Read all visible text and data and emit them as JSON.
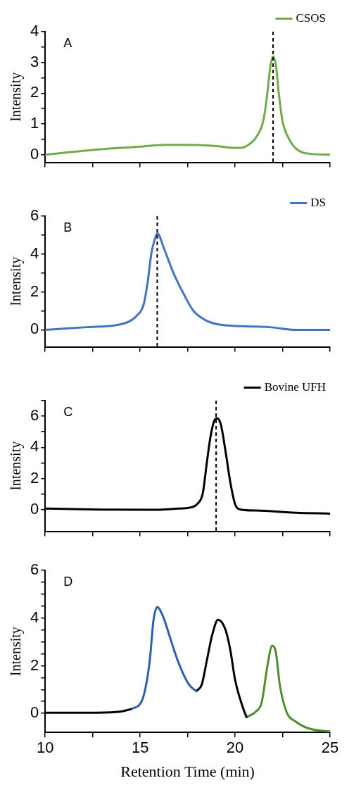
{
  "chart_data": [
    {
      "type": "line",
      "ylabel": "Intensity",
      "annotations": [
        "A"
      ],
      "legend": "top right",
      "marker": "none",
      "grid": false,
      "tick_labels": "y",
      "xlim": [
        10,
        25
      ],
      "xticks": [
        10,
        {
          "value": 12.5,
          "label": null
        },
        15,
        {
          "value": 17.5,
          "label": null
        },
        20,
        {
          "value": 22.5,
          "label": null
        },
        25
      ],
      "ylim": [
        -0.25,
        4
      ],
      "yticks": [
        0,
        {
          "value": 0.5,
          "label": null
        },
        1,
        {
          "value": 1.5,
          "label": null
        },
        2,
        {
          "value": 2.5,
          "label": null
        },
        3,
        {
          "value": 3.5,
          "label": null
        },
        4
      ],
      "ref_lines": [
        {
          "axis": "x",
          "value": 22,
          "color": "#000000",
          "line_style": "dashed"
        }
      ],
      "series": [
        {
          "name": "CSOS",
          "color": "#70ad47",
          "x": [
            10,
            12.4,
            15,
            16.3,
            17.4,
            18.8,
            19.75,
            20.3,
            20.7,
            21.1,
            21.5,
            21.7,
            21.85,
            22,
            22.15,
            22.3,
            22.5,
            22.8,
            23.2,
            23.9,
            25
          ],
          "values": [
            0,
            0.15,
            0.26,
            0.32,
            0.32,
            0.29,
            0.23,
            0.22,
            0.32,
            0.56,
            1.14,
            2.0,
            2.84,
            3.19,
            2.9,
            2.0,
            1.08,
            0.56,
            0.2,
            0.03,
            0
          ]
        }
      ]
    },
    {
      "type": "line",
      "ylabel": "Intensity",
      "annotations": [
        "B"
      ],
      "legend": "top right",
      "marker": "none",
      "grid": false,
      "tick_labels": "y",
      "xlim": [
        10,
        25
      ],
      "xticks": [
        10,
        {
          "value": 12.5,
          "label": null
        },
        15,
        {
          "value": 17.5,
          "label": null
        },
        20,
        {
          "value": 22.5,
          "label": null
        },
        25
      ],
      "ylim": [
        -0.9,
        6
      ],
      "yticks": [
        0,
        {
          "value": 1,
          "label": null
        },
        2,
        {
          "value": 3,
          "label": null
        },
        4,
        {
          "value": 5,
          "label": null
        },
        6
      ],
      "ref_lines": [
        {
          "axis": "x",
          "value": 15.9,
          "color": "#000000",
          "line_style": "dashed"
        }
      ],
      "series": [
        {
          "name": "DS",
          "color": "#4472c4",
          "x": [
            10,
            12.2,
            13.7,
            14.4,
            14.8,
            15.2,
            15.4,
            15.6,
            15.8,
            15.9,
            16.26,
            16.74,
            17.3,
            17.8,
            18.4,
            19.07,
            20.4,
            21.8,
            23.2,
            25
          ],
          "values": [
            0,
            0.14,
            0.24,
            0.43,
            0.72,
            1.39,
            2.55,
            4.09,
            4.86,
            5.1,
            4.28,
            3.03,
            1.88,
            1.01,
            0.53,
            0.29,
            0.19,
            0.14,
            0,
            0
          ]
        }
      ]
    },
    {
      "type": "line",
      "ylabel": "Intensity",
      "annotations": [
        "C"
      ],
      "legend": "top right",
      "marker": "none",
      "grid": false,
      "tick_labels": "y",
      "xlim": [
        10,
        25
      ],
      "xticks": [
        10,
        {
          "value": 12.5,
          "label": null
        },
        15,
        {
          "value": 17.5,
          "label": null
        },
        20,
        {
          "value": 22.5,
          "label": null
        },
        25
      ],
      "ylim": [
        -1.4,
        7
      ],
      "yticks": [
        0,
        {
          "value": 1,
          "label": null
        },
        2,
        {
          "value": 3,
          "label": null
        },
        4,
        {
          "value": 5,
          "label": null
        },
        6,
        {
          "value": 7,
          "label": null
        }
      ],
      "ref_lines": [
        {
          "axis": "x",
          "value": 19,
          "color": "#000000",
          "line_style": "dashed"
        }
      ],
      "series": [
        {
          "name": "Bovine UFH",
          "color": "#000000",
          "x": [
            10,
            12.9,
            15.6,
            17,
            17.6,
            18,
            18.3,
            18.5,
            18.7,
            18.9,
            19.05,
            19.25,
            19.5,
            19.75,
            20,
            20.3,
            21.1,
            23.2,
            25
          ],
          "values": [
            0.06,
            0,
            -0.02,
            0.06,
            0.12,
            0.35,
            1.05,
            2.9,
            4.65,
            5.7,
            5.87,
            5.47,
            3.72,
            1.74,
            0.35,
            0,
            -0.06,
            -0.21,
            -0.26
          ]
        }
      ]
    },
    {
      "type": "line",
      "ylabel": "Intensity",
      "xlabel": "Retention Time (min)",
      "annotations": [
        "D"
      ],
      "marker": "none",
      "grid": false,
      "xlim": [
        10,
        25
      ],
      "xticks": [
        10,
        {
          "value": 12.5,
          "label": null
        },
        15,
        {
          "value": 17.5,
          "label": null
        },
        20,
        {
          "value": 22.5,
          "label": null
        },
        25
      ],
      "ylim": [
        -0.8,
        6
      ],
      "yticks": [
        0,
        {
          "value": 0.5,
          "label": null
        },
        {
          "value": 1,
          "label": null
        },
        {
          "value": 1.5,
          "label": null
        },
        2,
        {
          "value": 2.5,
          "label": null
        },
        {
          "value": 3,
          "label": null
        },
        {
          "value": 3.5,
          "label": null
        },
        4,
        {
          "value": 4.5,
          "label": null
        },
        {
          "value": 5,
          "label": null
        },
        {
          "value": 5.5,
          "label": null
        },
        6
      ],
      "series": [
        {
          "color": "#000000",
          "x": [
            10,
            12.7,
            14,
            14.5
          ],
          "values": [
            0.03,
            0.03,
            0.08,
            0.17
          ]
        },
        {
          "color": "#2e5fb0",
          "x": [
            14.5,
            15.1,
            15.5,
            15.7,
            15.9,
            16.2,
            16.6,
            17,
            17.56,
            17.95
          ],
          "values": [
            0.17,
            0.55,
            2.17,
            3.89,
            4.46,
            4.08,
            3.12,
            2.17,
            1.22,
            0.93
          ]
        },
        {
          "color": "#000000",
          "x": [
            17.95,
            18.25,
            18.5,
            18.8,
            19.1,
            19.5,
            19.75,
            20,
            20.4,
            20.6
          ],
          "values": [
            0.93,
            1.22,
            2.17,
            3.31,
            3.93,
            3.5,
            2.65,
            1.41,
            0.27,
            -0.16
          ]
        },
        {
          "color": "#4e8f2a",
          "x": [
            20.6,
            21.1,
            21.4,
            21.7,
            21.95,
            22.15,
            22.35,
            22.7,
            23.2,
            23.9,
            25
          ],
          "values": [
            -0.16,
            0.08,
            0.46,
            1.98,
            2.84,
            2.55,
            1.22,
            0.08,
            -0.35,
            -0.64,
            -0.76
          ]
        }
      ]
    }
  ]
}
